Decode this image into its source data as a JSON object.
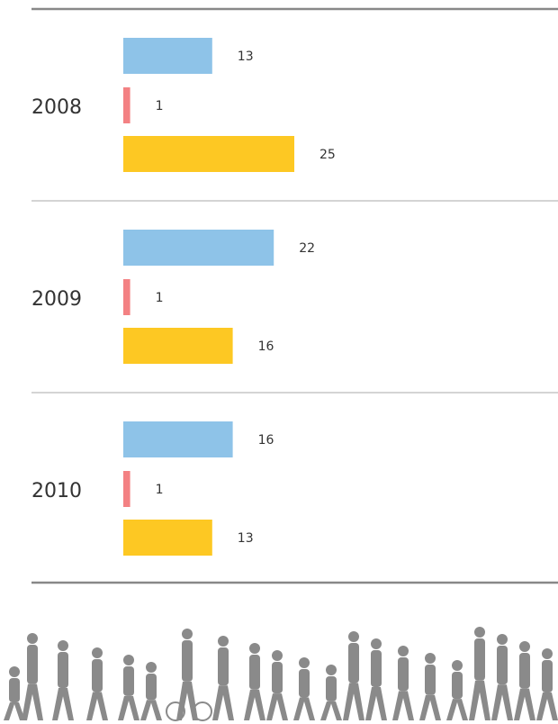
{
  "chart_data": {
    "type": "hbar-grouped",
    "categories": [
      "2008",
      "2009",
      "2010"
    ],
    "series": [
      {
        "color": "#8ec3e8",
        "values": [
          13,
          22,
          16
        ]
      },
      {
        "color": "#f38183",
        "values": [
          1,
          1,
          1
        ]
      },
      {
        "color": "#fdc823",
        "values": [
          25,
          16,
          13
        ]
      }
    ],
    "xlim": [
      0,
      50
    ]
  }
}
